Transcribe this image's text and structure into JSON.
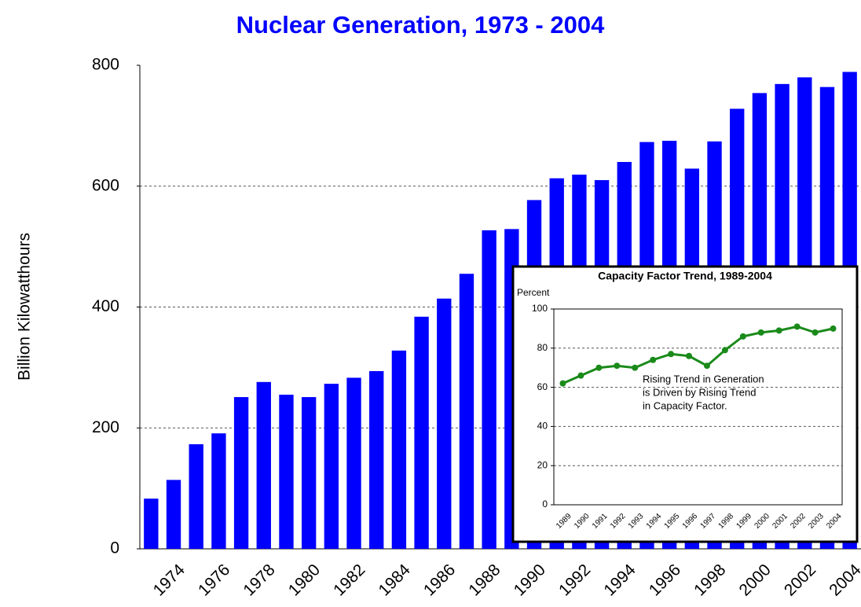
{
  "chart_data": [
    {
      "type": "bar",
      "title": "Nuclear Generation, 1973 - 2004",
      "y_label": "Billion Kilowatthours",
      "categories": [
        null,
        "1974",
        null,
        "1976",
        null,
        "1978",
        null,
        "1980",
        null,
        "1982",
        null,
        "1984",
        null,
        "1986",
        null,
        "1988",
        null,
        "1990",
        null,
        "1992",
        null,
        "1994",
        null,
        "1996",
        null,
        "1998",
        null,
        "2000",
        null,
        "2002",
        null,
        "2004"
      ],
      "values": [
        83,
        114,
        173,
        191,
        251,
        276,
        255,
        251,
        273,
        283,
        294,
        328,
        384,
        414,
        455,
        527,
        529,
        577,
        613,
        619,
        610,
        640,
        673,
        675,
        629,
        674,
        728,
        754,
        769,
        780,
        764,
        789
      ],
      "color": "#0000ff",
      "ylim": [
        0,
        800
      ],
      "yticks": [
        0,
        200,
        400,
        600,
        800
      ],
      "grid": true
    },
    {
      "type": "line",
      "title": "Capacity Factor Trend, 1989-2004",
      "y_label": "Percent",
      "annotation": [
        "Rising Trend in Generation",
        "is Driven by Rising Trend",
        "in Capacity Factor."
      ],
      "categories": [
        "1989",
        "1990",
        "1991",
        "1992",
        "1993",
        "1994",
        "1995",
        "1996",
        "1997",
        "1998",
        "1999",
        "2000",
        "2001",
        "2002",
        "2003",
        "2004"
      ],
      "values": [
        62,
        66,
        70,
        71,
        70,
        74,
        77,
        76,
        71,
        79,
        86,
        88,
        89,
        91,
        88,
        90
      ],
      "color": "#1a8a1a",
      "ylim": [
        0,
        100
      ],
      "yticks": [
        0,
        20,
        40,
        60,
        80,
        100
      ],
      "grid": true
    }
  ]
}
